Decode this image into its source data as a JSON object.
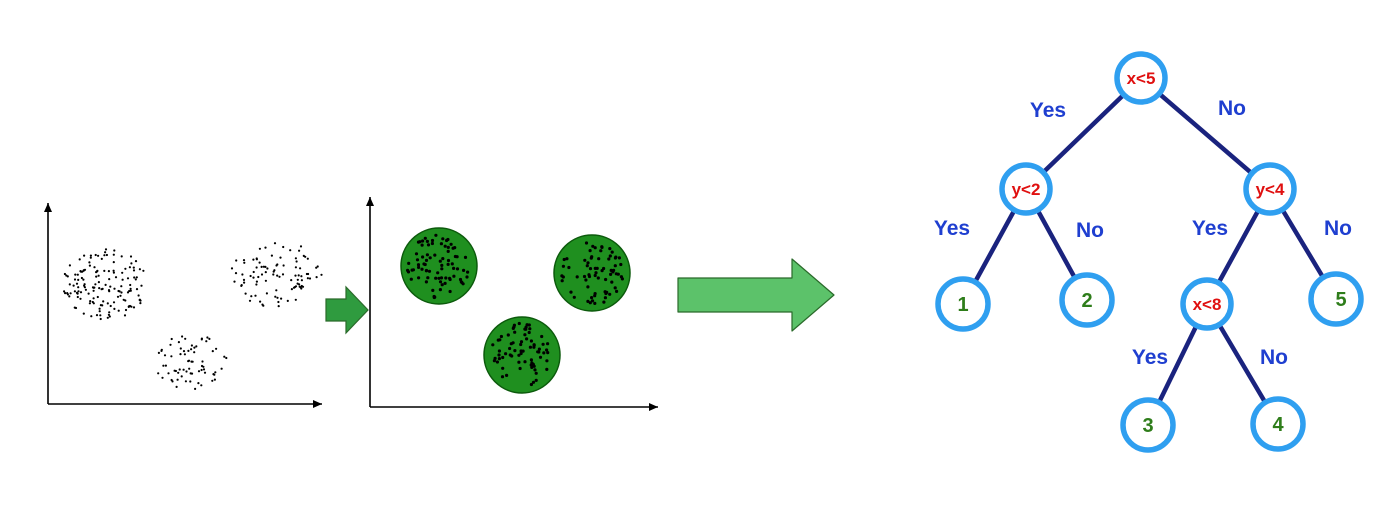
{
  "colors": {
    "axis": "#000000",
    "dot": "#000000",
    "cluster_fill": "#1f8f1f",
    "cluster_stroke": "#0c5a0c",
    "arrow_fill": "#5cc26a",
    "arrow_small_fill": "#2f9b3f",
    "arrow_stroke": "#2a6a2a",
    "tree_edge": "#1a237e",
    "node_ring": "#2f9ff0",
    "node_fill": "#ffffff",
    "edge_label": "#1f3fd0",
    "condition_text": "#e01010",
    "leaf_text": "#2e7d1a"
  },
  "icons": {
    "small_arrow": "right-arrow-icon",
    "big_arrow": "right-arrow-icon"
  },
  "tree": {
    "nodes": [
      {
        "id": "root",
        "kind": "condition",
        "label": "x<5"
      },
      {
        "id": "left",
        "kind": "condition",
        "label": "y<2"
      },
      {
        "id": "right",
        "kind": "condition",
        "label": "y<4"
      },
      {
        "id": "rightleft",
        "kind": "condition",
        "label": "x<8"
      },
      {
        "id": "leaf1",
        "kind": "leaf",
        "label": "1"
      },
      {
        "id": "leaf2",
        "kind": "leaf",
        "label": "2"
      },
      {
        "id": "leaf3",
        "kind": "leaf",
        "label": "3"
      },
      {
        "id": "leaf4",
        "kind": "leaf",
        "label": "4"
      },
      {
        "id": "leaf5",
        "kind": "leaf",
        "label": "5"
      }
    ],
    "edges": [
      {
        "from": "root",
        "to": "left",
        "label": "Yes"
      },
      {
        "from": "root",
        "to": "right",
        "label": "No"
      },
      {
        "from": "left",
        "to": "leaf1",
        "label": "Yes"
      },
      {
        "from": "left",
        "to": "leaf2",
        "label": "No"
      },
      {
        "from": "right",
        "to": "rightleft",
        "label": "Yes"
      },
      {
        "from": "right",
        "to": "leaf5",
        "label": "No"
      },
      {
        "from": "rightleft",
        "to": "leaf3",
        "label": "Yes"
      },
      {
        "from": "rightleft",
        "to": "leaf4",
        "label": "No"
      }
    ]
  }
}
